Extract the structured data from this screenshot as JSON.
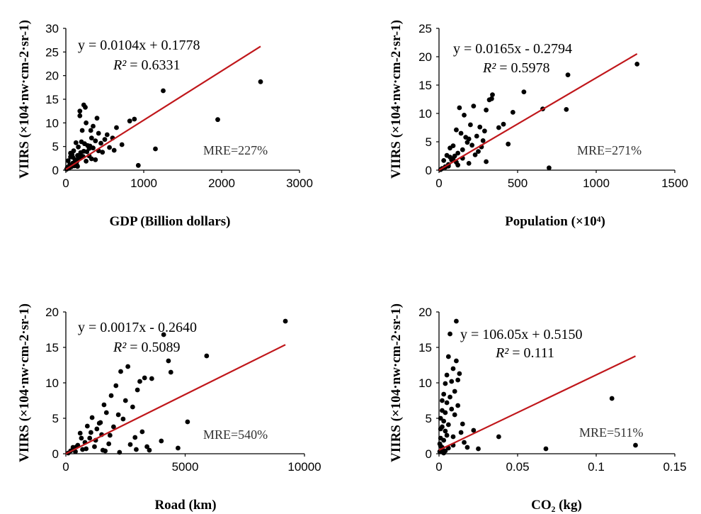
{
  "chart_data": [
    {
      "type": "scatter",
      "xlabel": "GDP (Billion dollars)",
      "ylabel": "VIIRS (×104·nw·cm-2·sr-1)",
      "xlim": [
        0,
        3000
      ],
      "ylim": [
        0,
        30
      ],
      "xticks": [
        "0",
        "1000",
        "2000",
        "3000"
      ],
      "yticks": [
        "0",
        "5",
        "10",
        "15",
        "20",
        "25",
        "30"
      ],
      "fit": {
        "slope": 0.0104,
        "intercept": 0.1778
      },
      "equation": "y = 0.0104x + 0.1778",
      "r2_label": "R²",
      "r2_value": "= 0.6331",
      "mre": "MRE=227%",
      "x": [
        2500,
        1250,
        1950,
        1150,
        930,
        880,
        820,
        720,
        650,
        620,
        600,
        560,
        530,
        500,
        470,
        450,
        420,
        400,
        380,
        350,
        330,
        320,
        300,
        280,
        260,
        250,
        230,
        220,
        200,
        190,
        180,
        170,
        160,
        150,
        140,
        130,
        120,
        110,
        100,
        90,
        80,
        70,
        60,
        50,
        40,
        30,
        20,
        10,
        210,
        180,
        300,
        240,
        350,
        420,
        150,
        270,
        330,
        90,
        140,
        60,
        380,
        260,
        230,
        200,
        310
      ],
      "y": [
        18.7,
        16.8,
        10.7,
        4.5,
        1.0,
        10.8,
        10.4,
        5.4,
        9.0,
        4.2,
        6.8,
        4.8,
        7.5,
        6.5,
        3.8,
        5.7,
        4.1,
        11.0,
        6.2,
        9.3,
        6.8,
        8.4,
        4.6,
        5.2,
        10.0,
        13.3,
        13.8,
        2.9,
        6.0,
        3.7,
        11.5,
        2.5,
        4.9,
        3.1,
        1.8,
        5.8,
        2.2,
        0.9,
        4.1,
        1.5,
        3.3,
        0.7,
        2.8,
        1.2,
        0.4,
        2.0,
        0.6,
        0.2,
        8.4,
        12.5,
        3.0,
        5.6,
        4.7,
        7.8,
        0.8,
        3.9,
        2.4,
        2.7,
        1.1,
        3.6,
        2.2,
        1.9,
        4.0,
        3.0,
        5.1
      ]
    },
    {
      "type": "scatter",
      "xlabel": "Population (×10⁴)",
      "ylabel": "VIIRS (×104·nw·cm-2·sr-1)",
      "xlim": [
        0,
        1500
      ],
      "ylim": [
        0,
        25
      ],
      "xticks": [
        "0",
        "500",
        "1000",
        "1500"
      ],
      "yticks": [
        "0",
        "5",
        "10",
        "15",
        "20",
        "25"
      ],
      "fit": {
        "slope": 0.0165,
        "intercept": -0.2794
      },
      "equation": "y = 0.0165x - 0.2794",
      "r2_label": "R²",
      "r2_value": "= 0.5978",
      "mre": "MRE=271%",
      "x": [
        1260,
        820,
        810,
        700,
        660,
        540,
        470,
        440,
        410,
        380,
        340,
        320,
        300,
        280,
        260,
        240,
        220,
        200,
        190,
        180,
        160,
        150,
        140,
        130,
        120,
        110,
        100,
        90,
        80,
        70,
        60,
        50,
        40,
        30,
        20,
        10,
        335,
        290,
        250,
        210,
        170,
        300,
        230,
        150,
        120,
        90,
        60,
        270,
        190,
        110,
        70,
        40
      ],
      "y": [
        18.7,
        16.8,
        10.7,
        0.4,
        10.8,
        13.8,
        10.2,
        4.6,
        8.1,
        7.5,
        13.3,
        12.4,
        10.6,
        5.2,
        7.6,
        6.0,
        11.3,
        8.0,
        5.5,
        4.9,
        9.7,
        2.1,
        6.5,
        11.0,
        3.0,
        7.1,
        2.5,
        4.3,
        1.8,
        3.9,
        1.0,
        2.6,
        0.6,
        1.7,
        0.3,
        0.1,
        12.6,
        6.9,
        3.3,
        4.4,
        5.8,
        1.5,
        2.7,
        3.6,
        0.9,
        2.0,
        0.7,
        4.1,
        1.2,
        1.4,
        2.3,
        0.5
      ]
    },
    {
      "type": "scatter",
      "xlabel": "Road (km)",
      "ylabel": "VIIRS (×104·nw·cm-2·sr-1)",
      "xlim": [
        0,
        10000
      ],
      "ylim": [
        0,
        20
      ],
      "xticks": [
        "0",
        "5000",
        "10000"
      ],
      "yticks": [
        "0",
        "5",
        "10",
        "15",
        "20"
      ],
      "fit": {
        "slope": 0.0017,
        "intercept": -0.264
      },
      "equation": "y = 0.0017x - 0.2640",
      "r2_label": "R²",
      "r2_value": "= 0.5089",
      "mre": "MRE=540%",
      "x": [
        9200,
        5900,
        4100,
        4300,
        4400,
        4000,
        3500,
        3300,
        3100,
        3000,
        2900,
        2600,
        2500,
        2400,
        2300,
        2200,
        2100,
        2000,
        1900,
        1800,
        1700,
        1600,
        1500,
        1400,
        1300,
        1200,
        1100,
        1000,
        900,
        800,
        700,
        600,
        500,
        400,
        300,
        200,
        100,
        5100,
        4700,
        3600,
        3200,
        2800,
        2700,
        1850,
        1650,
        1450,
        1250,
        1050,
        850,
        650,
        450,
        2950,
        2250,
        1550,
        3400
      ],
      "y": [
        18.7,
        13.8,
        16.8,
        13.1,
        11.5,
        1.8,
        0.5,
        10.7,
        10.2,
        9.0,
        2.3,
        12.3,
        7.5,
        4.9,
        11.6,
        5.5,
        9.6,
        3.8,
        8.2,
        1.4,
        5.8,
        6.9,
        2.7,
        4.3,
        3.5,
        1.0,
        5.1,
        2.2,
        3.9,
        1.6,
        0.6,
        2.9,
        1.2,
        0.3,
        0.9,
        0.4,
        0.1,
        4.5,
        0.8,
        10.6,
        3.1,
        6.6,
        1.3,
        2.6,
        0.4,
        4.4,
        1.9,
        3.0,
        0.7,
        2.2,
        1.0,
        0.6,
        0.2,
        0.5,
        1.0
      ]
    },
    {
      "type": "scatter",
      "xlabel": "CO₂ (kg)",
      "ylabel": "VIIRS (×104·nw·cm-2·sr-1)",
      "xlim": [
        0,
        0.15
      ],
      "ylim": [
        0,
        20
      ],
      "xticks": [
        "0",
        "0.05",
        "0.1",
        "0.15"
      ],
      "yticks": [
        "0",
        "5",
        "10",
        "15",
        "20"
      ],
      "fit": {
        "slope": 106.05,
        "intercept": 0.515
      },
      "equation": "y = 106.05x + 0.5150",
      "r2_label": "R²",
      "r2_value": "= 0.111",
      "mre": "MRE=511%",
      "x": [
        0.125,
        0.11,
        0.068,
        0.038,
        0.025,
        0.022,
        0.018,
        0.016,
        0.015,
        0.013,
        0.012,
        0.011,
        0.011,
        0.01,
        0.01,
        0.009,
        0.009,
        0.008,
        0.008,
        0.007,
        0.007,
        0.006,
        0.006,
        0.005,
        0.005,
        0.005,
        0.004,
        0.004,
        0.004,
        0.003,
        0.003,
        0.003,
        0.002,
        0.002,
        0.002,
        0.002,
        0.001,
        0.001,
        0.001,
        0.001,
        0.0005,
        0.0005,
        0.012,
        0.014,
        0.009,
        0.006,
        0.004,
        0.002,
        0.003
      ],
      "y": [
        1.2,
        7.8,
        0.7,
        2.4,
        0.7,
        3.3,
        0.9,
        1.6,
        4.2,
        11.3,
        10.4,
        18.7,
        13.1,
        8.8,
        5.5,
        12.0,
        2.4,
        10.2,
        6.3,
        16.9,
        8.0,
        13.7,
        4.1,
        11.1,
        7.2,
        2.6,
        9.9,
        5.8,
        3.2,
        8.4,
        4.6,
        1.9,
        7.5,
        3.8,
        0.6,
        6.1,
        5.0,
        2.2,
        1.1,
        3.5,
        0.3,
        1.4,
        6.8,
        3.0,
        1.2,
        0.8,
        0.4,
        0.9,
        0.1
      ]
    }
  ]
}
